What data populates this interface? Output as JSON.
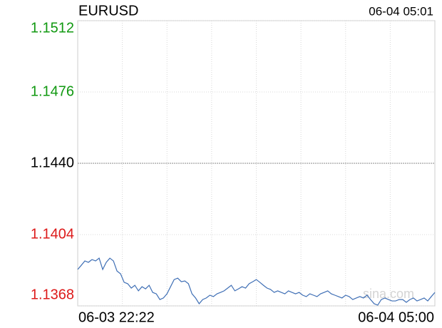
{
  "chart_data": {
    "type": "line",
    "title": "EURUSD",
    "timestamp": "06-04 05:01",
    "watermark": "sina.com",
    "x_labels": [
      "06-03 22:22",
      "06-04 05:00"
    ],
    "base": 1.144,
    "up_color": "#119911",
    "down_color": "#dd1a1a",
    "base_color": "#000000",
    "ylim": [
      1.1368,
      1.1512
    ],
    "yticks": [
      {
        "value": 1.1512,
        "label": "1.1512"
      },
      {
        "value": 1.1476,
        "label": "1.1476"
      },
      {
        "value": 1.144,
        "label": "1.1440"
      },
      {
        "value": 1.1404,
        "label": "1.1404"
      },
      {
        "value": 1.1368,
        "label": "1.1368"
      }
    ],
    "grid": true,
    "series": [
      {
        "color": "#3f6fb5",
        "values": [
          1.13864,
          1.13885,
          1.13907,
          1.139,
          1.13914,
          1.13907,
          1.13921,
          1.13864,
          1.139,
          1.13921,
          1.13907,
          1.13856,
          1.13842,
          1.13799,
          1.13792,
          1.1377,
          1.13784,
          1.13756,
          1.13777,
          1.13766,
          1.13784,
          1.13748,
          1.13741,
          1.13712,
          1.1372,
          1.13741,
          1.13777,
          1.13813,
          1.1382,
          1.13802,
          1.13806,
          1.13792,
          1.13741,
          1.1372,
          1.13691,
          1.13712,
          1.1372,
          1.13734,
          1.13727,
          1.13741,
          1.13748,
          1.13756,
          1.1377,
          1.13784,
          1.13756,
          1.13766,
          1.13777,
          1.1377,
          1.13792,
          1.13802,
          1.13813,
          1.13799,
          1.13784,
          1.1377,
          1.13763,
          1.13748,
          1.13756,
          1.13748,
          1.13741,
          1.13756,
          1.13748,
          1.13741,
          1.13748,
          1.13734,
          1.13727,
          1.13741,
          1.13734,
          1.13727,
          1.13741,
          1.13748,
          1.13756,
          1.13741,
          1.13734,
          1.13727,
          1.1372,
          1.13734,
          1.13727,
          1.13712,
          1.1372,
          1.13727,
          1.1372,
          1.13734,
          1.13712,
          1.13691,
          1.13684,
          1.13712,
          1.1372,
          1.13712,
          1.13705,
          1.13705,
          1.13712,
          1.13712,
          1.13698,
          1.13712,
          1.1372,
          1.13705,
          1.13712,
          1.1372,
          1.13705,
          1.13727,
          1.13748
        ]
      }
    ]
  }
}
